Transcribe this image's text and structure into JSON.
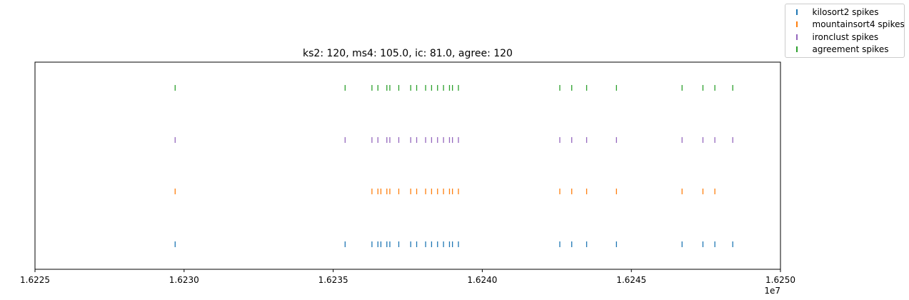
{
  "chart_data": {
    "type": "scatter",
    "title": "ks2: 120, ms4: 105.0, ic: 81.0, agree: 120",
    "xlabel": "",
    "ylabel": "",
    "xlim": [
      1.6225,
      1.625
    ],
    "x_offset_label": "1e7",
    "x_ticks": [
      "1.6225",
      "1.6230",
      "1.6235",
      "1.6240",
      "1.6245",
      "1.6250"
    ],
    "grid": false,
    "legend_position": "top-right outside",
    "series": [
      {
        "name": "kilosort2 spikes",
        "color": "#1f77b4",
        "x": [
          1.62297,
          1.62354,
          1.62363,
          1.62365,
          1.62366,
          1.62368,
          1.62369,
          1.62372,
          1.62376,
          1.62378,
          1.62381,
          1.62383,
          1.62385,
          1.62387,
          1.62389,
          1.6239,
          1.62392,
          1.62426,
          1.6243,
          1.62435,
          1.62445,
          1.62467,
          1.62474,
          1.62478,
          1.62484
        ]
      },
      {
        "name": "mountainsort4 spikes",
        "color": "#ff7f0e",
        "x": [
          1.62297,
          1.62363,
          1.62365,
          1.62366,
          1.62368,
          1.62369,
          1.62372,
          1.62376,
          1.62378,
          1.62381,
          1.62383,
          1.62385,
          1.62387,
          1.62389,
          1.6239,
          1.62392,
          1.62426,
          1.6243,
          1.62435,
          1.62445,
          1.62467,
          1.62474,
          1.62478
        ]
      },
      {
        "name": "ironclust spikes",
        "color": "#9467bd",
        "x": [
          1.62297,
          1.62354,
          1.62363,
          1.62365,
          1.62368,
          1.62369,
          1.62372,
          1.62376,
          1.62378,
          1.62381,
          1.62383,
          1.62385,
          1.62387,
          1.62389,
          1.6239,
          1.62392,
          1.62426,
          1.6243,
          1.62435,
          1.62445,
          1.62467,
          1.62474,
          1.62478,
          1.62484
        ]
      },
      {
        "name": "agreement spikes",
        "color": "#2ca02c",
        "x": [
          1.62297,
          1.62354,
          1.62363,
          1.62365,
          1.62368,
          1.62369,
          1.62372,
          1.62376,
          1.62378,
          1.62381,
          1.62383,
          1.62385,
          1.62387,
          1.62389,
          1.6239,
          1.62392,
          1.62426,
          1.6243,
          1.62435,
          1.62445,
          1.62467,
          1.62474,
          1.62478,
          1.62484
        ]
      }
    ]
  }
}
